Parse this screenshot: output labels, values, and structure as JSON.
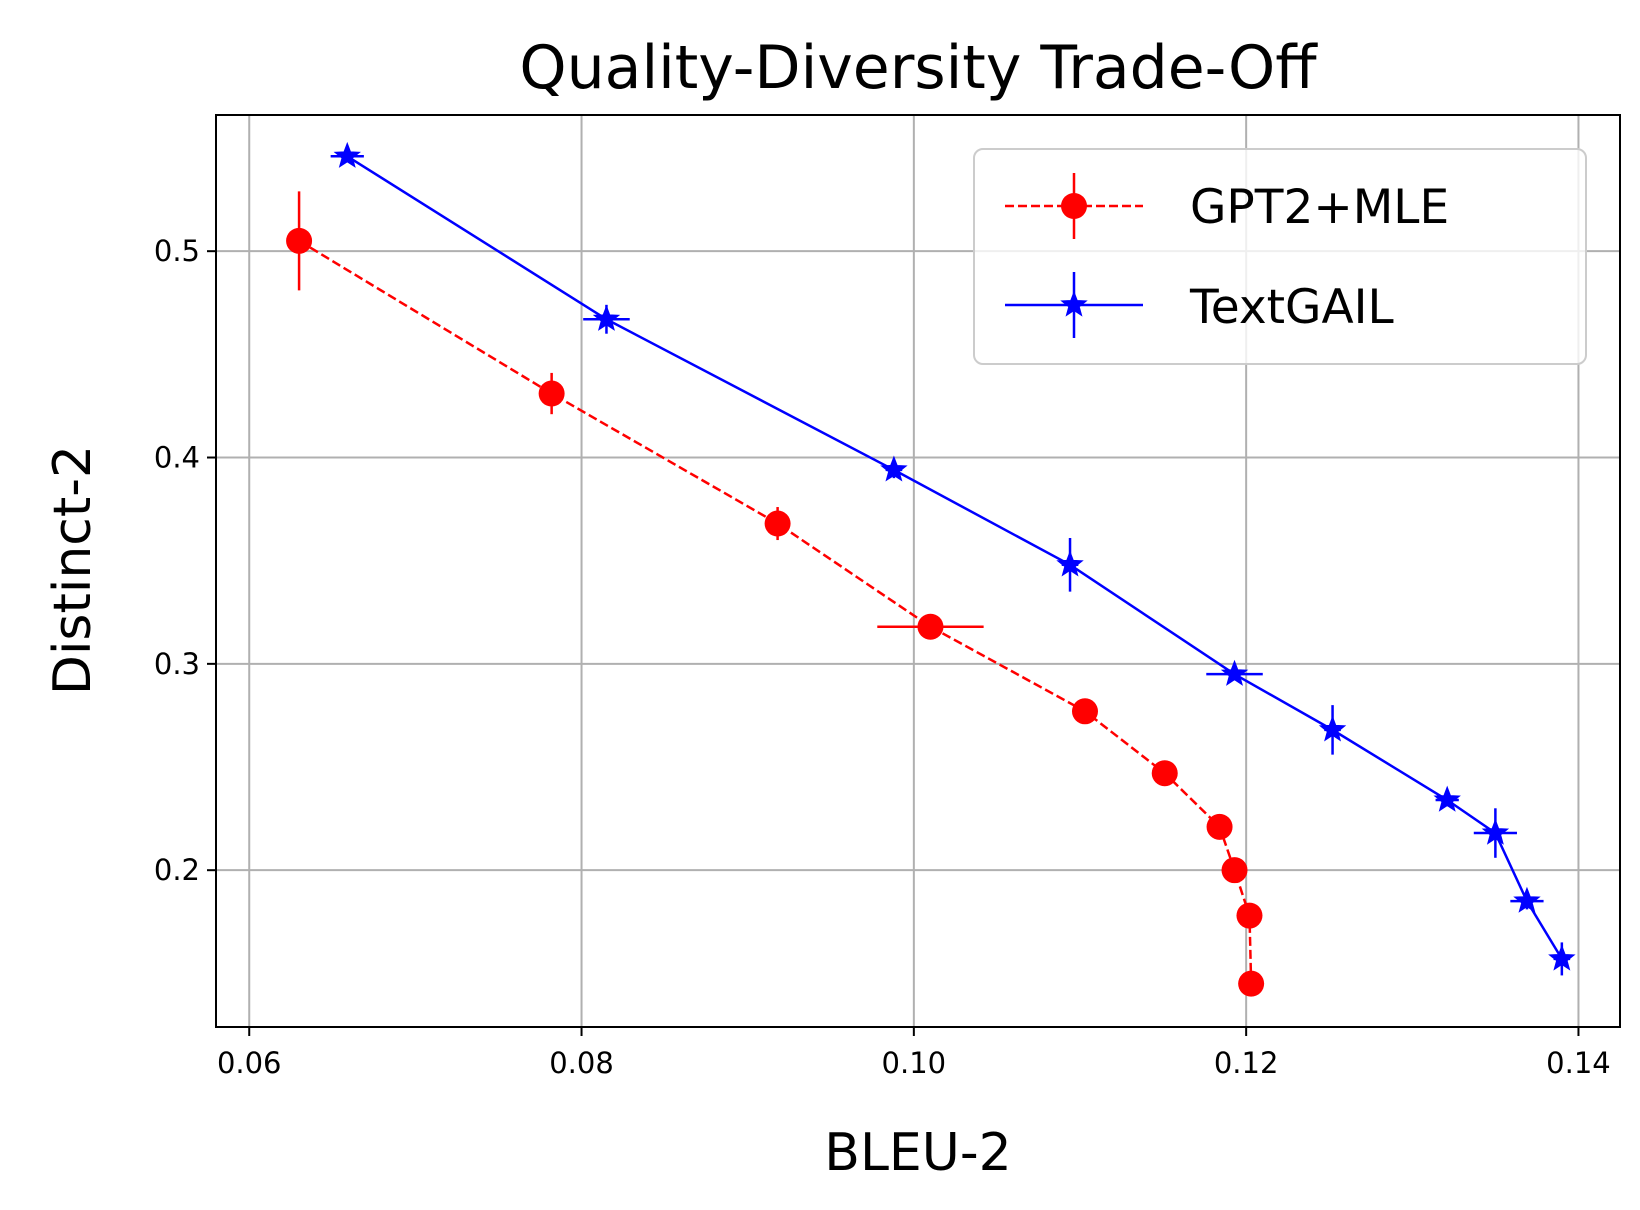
{
  "chart_data": {
    "type": "line",
    "title": "Quality-Diversity Trade-Off",
    "xlabel": "BLEU-2",
    "ylabel": "Distinct-2",
    "xlim": [
      0.058,
      0.1425
    ],
    "ylim": [
      0.124,
      0.566
    ],
    "xticks": [
      0.06,
      0.08,
      0.1,
      0.12,
      0.14
    ],
    "xtick_labels": [
      "0.06",
      "0.08",
      "0.10",
      "0.12",
      "0.14"
    ],
    "yticks": [
      0.2,
      0.3,
      0.4,
      0.5
    ],
    "ytick_labels": [
      "0.2",
      "0.3",
      "0.4",
      "0.5"
    ],
    "grid": true,
    "legend_position": "top-right",
    "series": [
      {
        "name": "GPT2+MLE",
        "color": "#ff0000",
        "linestyle": "dashed",
        "marker": "circle",
        "points": [
          {
            "x": 0.063,
            "y": 0.505,
            "xerr": 0.0003,
            "yerr": 0.024
          },
          {
            "x": 0.0782,
            "y": 0.431,
            "xerr": 0.0003,
            "yerr": 0.01
          },
          {
            "x": 0.0918,
            "y": 0.368,
            "xerr": 0.0003,
            "yerr": 0.008
          },
          {
            "x": 0.101,
            "y": 0.318,
            "xerr": 0.0032,
            "yerr": 0.002
          },
          {
            "x": 0.1103,
            "y": 0.277,
            "xerr": 0.0002,
            "yerr": 0.002
          },
          {
            "x": 0.1151,
            "y": 0.247,
            "xerr": 0.0002,
            "yerr": 0.002
          },
          {
            "x": 0.1184,
            "y": 0.221,
            "xerr": 0.0002,
            "yerr": 0.002
          },
          {
            "x": 0.1193,
            "y": 0.2,
            "xerr": 0.0002,
            "yerr": 0.002
          },
          {
            "x": 0.1202,
            "y": 0.178,
            "xerr": 0.0002,
            "yerr": 0.002
          },
          {
            "x": 0.1203,
            "y": 0.145,
            "xerr": 0.0002,
            "yerr": 0.002
          }
        ]
      },
      {
        "name": "TextGAIL",
        "color": "#0000ff",
        "linestyle": "solid",
        "marker": "star",
        "points": [
          {
            "x": 0.0659,
            "y": 0.546,
            "xerr": 0.001,
            "yerr": 0.003
          },
          {
            "x": 0.0815,
            "y": 0.467,
            "xerr": 0.0014,
            "yerr": 0.007
          },
          {
            "x": 0.0988,
            "y": 0.394,
            "xerr": 0.0005,
            "yerr": 0.004
          },
          {
            "x": 0.1094,
            "y": 0.348,
            "xerr": 0.0005,
            "yerr": 0.013
          },
          {
            "x": 0.1193,
            "y": 0.295,
            "xerr": 0.0017,
            "yerr": 0.003
          },
          {
            "x": 0.1252,
            "y": 0.268,
            "xerr": 0.0005,
            "yerr": 0.012
          },
          {
            "x": 0.1321,
            "y": 0.234,
            "xerr": 0.0007,
            "yerr": 0.003
          },
          {
            "x": 0.135,
            "y": 0.218,
            "xerr": 0.0013,
            "yerr": 0.012
          },
          {
            "x": 0.1369,
            "y": 0.185,
            "xerr": 0.001,
            "yerr": 0.004
          },
          {
            "x": 0.139,
            "y": 0.157,
            "xerr": 0.0005,
            "yerr": 0.008
          }
        ]
      }
    ]
  }
}
